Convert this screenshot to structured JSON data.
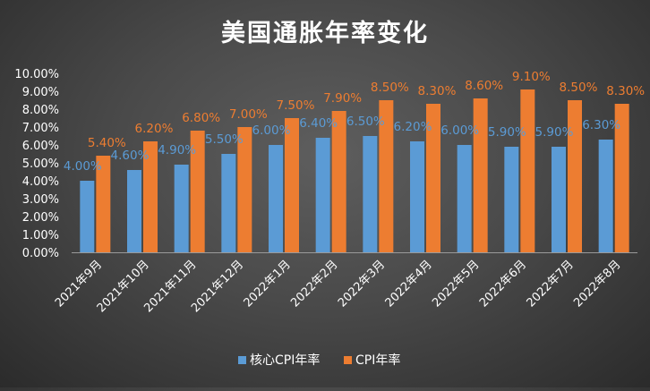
{
  "chart_data": {
    "type": "bar",
    "title": "美国通胀年率变化",
    "categories": [
      "2021年9月",
      "2021年10月",
      "2021年11月",
      "2021年12月",
      "2022年1月",
      "2022年2月",
      "2022年3月",
      "2022年4月",
      "2022年5月",
      "2022年6月",
      "2022年7月",
      "2022年8月"
    ],
    "series": [
      {
        "name": "核心CPI年率",
        "color": "#5b9bd5",
        "values": [
          4.0,
          4.6,
          4.9,
          5.5,
          6.0,
          6.4,
          6.5,
          6.2,
          6.0,
          5.9,
          5.9,
          6.3
        ],
        "labels": [
          "4.00%",
          "4.60%",
          "4.90%",
          "5.50%",
          "6.00%",
          "6.40%",
          "6.50%",
          "6.20%",
          "6.00%",
          "5.90%",
          "5.90%",
          "6.30%"
        ]
      },
      {
        "name": "CPI年率",
        "color": "#ed7d31",
        "values": [
          5.4,
          6.2,
          6.8,
          7.0,
          7.5,
          7.9,
          8.5,
          8.3,
          8.6,
          9.1,
          8.5,
          8.3
        ],
        "labels": [
          "5.40%",
          "6.20%",
          "6.80%",
          "7.00%",
          "7.50%",
          "7.90%",
          "8.50%",
          "8.30%",
          "8.60%",
          "9.10%",
          "8.50%",
          "8.30%"
        ]
      }
    ],
    "y_ticks": [
      "0.00%",
      "1.00%",
      "2.00%",
      "3.00%",
      "4.00%",
      "5.00%",
      "6.00%",
      "7.00%",
      "8.00%",
      "9.00%",
      "10.00%"
    ],
    "ylim": [
      0,
      10
    ],
    "xlabel": "",
    "ylabel": "",
    "grid": false,
    "legend_position": "bottom"
  }
}
